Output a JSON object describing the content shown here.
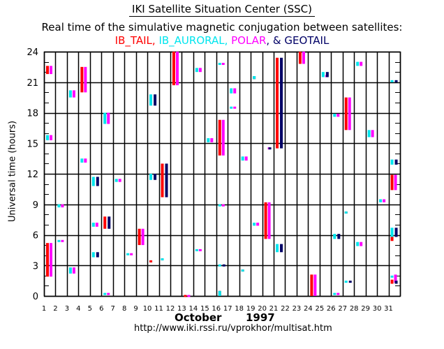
{
  "header": {
    "title": "IKI Satellite Situation Center (SSC)",
    "subtitle": "Real time of the simulative magnetic conjugation between satellites:",
    "legend": [
      {
        "name": "IB_TAIL",
        "sep": ", ",
        "color": "#ff0000"
      },
      {
        "name": "IB_AURORAL",
        "sep": ", ",
        "color": "#00e5ee"
      },
      {
        "name": "POLAR",
        "sep": ", & ",
        "color": "#ff00ff"
      },
      {
        "name": "GEOTAIL",
        "sep": "",
        "color": "#000066"
      }
    ]
  },
  "footer": {
    "month": "October",
    "year": "1997",
    "url": "http://www.iki.rssi.ru/vprokhor/multisat.htm"
  },
  "chart_data": {
    "type": "timeline",
    "title": "Real time of the simulative magnetic conjugation between satellites",
    "xlabel": "October 1997",
    "ylabel": "Universal time (hours)",
    "x_ticks": [
      "1",
      "2",
      "3",
      "4",
      "5",
      "6",
      "7",
      "8",
      "9",
      "10",
      "11",
      "12",
      "13",
      "14",
      "15",
      "16",
      "17",
      "18",
      "19",
      "20",
      "21",
      "22",
      "23",
      "24",
      "25",
      "26",
      "27",
      "28",
      "29",
      "30",
      "31"
    ],
    "y_ticks": [
      0,
      3,
      6,
      9,
      12,
      15,
      18,
      21,
      24
    ],
    "xlim": [
      1,
      32
    ],
    "ylim": [
      0,
      24
    ],
    "series_colors": {
      "IB_TAIL": "#ff0000",
      "IB_AURORAL": "#00e5ee",
      "POLAR": "#ff00ff",
      "GEOTAIL": "#000066"
    },
    "intervals": [
      {
        "sat": "IB_TAIL",
        "day": 1,
        "start": 21.8,
        "end": 22.6
      },
      {
        "sat": "POLAR",
        "day": 1,
        "start": 21.8,
        "end": 22.6
      },
      {
        "sat": "IB_AURORAL",
        "day": 1,
        "start": 15.3,
        "end": 15.8
      },
      {
        "sat": "POLAR",
        "day": 1,
        "start": 15.3,
        "end": 15.8
      },
      {
        "sat": "IB_TAIL",
        "day": 1,
        "start": 1.9,
        "end": 5.2
      },
      {
        "sat": "POLAR",
        "day": 1,
        "start": 1.9,
        "end": 5.2
      },
      {
        "sat": "IB_AURORAL",
        "day": 2,
        "start": 8.7,
        "end": 9.0
      },
      {
        "sat": "POLAR",
        "day": 2,
        "start": 8.7,
        "end": 9.0
      },
      {
        "sat": "IB_AURORAL",
        "day": 2,
        "start": 5.3,
        "end": 5.5
      },
      {
        "sat": "POLAR",
        "day": 2,
        "start": 5.3,
        "end": 5.5
      },
      {
        "sat": "IB_AURORAL",
        "day": 3,
        "start": 19.5,
        "end": 20.2
      },
      {
        "sat": "POLAR",
        "day": 3,
        "start": 19.5,
        "end": 20.2
      },
      {
        "sat": "IB_AURORAL",
        "day": 3,
        "start": 2.2,
        "end": 2.8
      },
      {
        "sat": "POLAR",
        "day": 3,
        "start": 2.2,
        "end": 2.8
      },
      {
        "sat": "IB_TAIL",
        "day": 4,
        "start": 20.0,
        "end": 22.5
      },
      {
        "sat": "POLAR",
        "day": 4,
        "start": 20.0,
        "end": 22.5
      },
      {
        "sat": "IB_AURORAL",
        "day": 4,
        "start": 13.1,
        "end": 13.5
      },
      {
        "sat": "POLAR",
        "day": 4,
        "start": 13.1,
        "end": 13.5
      },
      {
        "sat": "IB_AURORAL",
        "day": 5,
        "start": 10.8,
        "end": 11.7
      },
      {
        "sat": "GEOTAIL",
        "day": 5,
        "start": 10.8,
        "end": 11.7
      },
      {
        "sat": "IB_AURORAL",
        "day": 5,
        "start": 6.8,
        "end": 7.2
      },
      {
        "sat": "POLAR",
        "day": 5,
        "start": 6.8,
        "end": 7.2
      },
      {
        "sat": "IB_AURORAL",
        "day": 5,
        "start": 3.8,
        "end": 4.3
      },
      {
        "sat": "GEOTAIL",
        "day": 5,
        "start": 3.8,
        "end": 4.3
      },
      {
        "sat": "IB_AURORAL",
        "day": 6,
        "start": 16.9,
        "end": 18.0
      },
      {
        "sat": "POLAR",
        "day": 6,
        "start": 16.9,
        "end": 18.0
      },
      {
        "sat": "IB_TAIL",
        "day": 6,
        "start": 6.6,
        "end": 7.8
      },
      {
        "sat": "GEOTAIL",
        "day": 6,
        "start": 6.6,
        "end": 7.8
      },
      {
        "sat": "IB_AURORAL",
        "day": 6,
        "start": 0.1,
        "end": 0.3
      },
      {
        "sat": "POLAR",
        "day": 6,
        "start": 0.1,
        "end": 0.3
      },
      {
        "sat": "IB_AURORAL",
        "day": 7,
        "start": 11.2,
        "end": 11.5
      },
      {
        "sat": "POLAR",
        "day": 7,
        "start": 11.2,
        "end": 11.5
      },
      {
        "sat": "IB_AURORAL",
        "day": 8,
        "start": 4.0,
        "end": 4.2
      },
      {
        "sat": "POLAR",
        "day": 8,
        "start": 4.0,
        "end": 4.2
      },
      {
        "sat": "IB_TAIL",
        "day": 9,
        "start": 5.0,
        "end": 6.6
      },
      {
        "sat": "POLAR",
        "day": 9,
        "start": 5.0,
        "end": 6.6
      },
      {
        "sat": "IB_AURORAL",
        "day": 10,
        "start": 18.7,
        "end": 19.8
      },
      {
        "sat": "GEOTAIL",
        "day": 10,
        "start": 18.7,
        "end": 19.8
      },
      {
        "sat": "IB_AURORAL",
        "day": 10,
        "start": 11.4,
        "end": 12.0
      },
      {
        "sat": "GEOTAIL",
        "day": 10,
        "start": 11.4,
        "end": 12.0
      },
      {
        "sat": "IB_AURORAL",
        "day": 10,
        "start": 3.3,
        "end": 3.5
      },
      {
        "sat": "IB_TAIL",
        "day": 10,
        "start": 3.3,
        "end": 3.5
      },
      {
        "sat": "IB_TAIL",
        "day": 11,
        "start": 9.7,
        "end": 13.0
      },
      {
        "sat": "GEOTAIL",
        "day": 11,
        "start": 9.7,
        "end": 13.0
      },
      {
        "sat": "IB_TAIL",
        "day": 11,
        "start": 3.5,
        "end": 3.7
      },
      {
        "sat": "IB_AURORAL",
        "day": 11,
        "start": 3.5,
        "end": 3.7
      },
      {
        "sat": "IB_TAIL",
        "day": 12,
        "start": 20.7,
        "end": 24.0
      },
      {
        "sat": "POLAR",
        "day": 12,
        "start": 20.7,
        "end": 24.0
      },
      {
        "sat": "IB_TAIL",
        "day": 13,
        "start": 0.0,
        "end": 0.1
      },
      {
        "sat": "POLAR",
        "day": 13,
        "start": 0.0,
        "end": 0.1
      },
      {
        "sat": "IB_AURORAL",
        "day": 14,
        "start": 22.0,
        "end": 22.4
      },
      {
        "sat": "POLAR",
        "day": 14,
        "start": 22.0,
        "end": 22.4
      },
      {
        "sat": "IB_AURORAL",
        "day": 14,
        "start": 4.4,
        "end": 4.6
      },
      {
        "sat": "POLAR",
        "day": 14,
        "start": 4.4,
        "end": 4.6
      },
      {
        "sat": "IB_AURORAL",
        "day": 15,
        "start": 15.1,
        "end": 15.5
      },
      {
        "sat": "POLAR",
        "day": 15,
        "start": 15.1,
        "end": 15.5
      },
      {
        "sat": "IB_TAIL",
        "day": 16,
        "start": 13.8,
        "end": 17.3
      },
      {
        "sat": "POLAR",
        "day": 16,
        "start": 13.8,
        "end": 17.3
      },
      {
        "sat": "IB_AURORAL",
        "day": 16,
        "start": 22.7,
        "end": 22.9
      },
      {
        "sat": "POLAR",
        "day": 16,
        "start": 22.7,
        "end": 22.9
      },
      {
        "sat": "IB_AURORAL",
        "day": 16,
        "start": 8.8,
        "end": 9.0
      },
      {
        "sat": "POLAR",
        "day": 16,
        "start": 8.8,
        "end": 9.0
      },
      {
        "sat": "IB_AURORAL",
        "day": 16,
        "start": 2.9,
        "end": 3.1
      },
      {
        "sat": "GEOTAIL",
        "day": 16,
        "start": 2.9,
        "end": 3.1
      },
      {
        "sat": "IB_TAIL",
        "day": 16,
        "start": 0.0,
        "end": 0.5
      },
      {
        "sat": "IB_AURORAL",
        "day": 16,
        "start": 0.0,
        "end": 0.5
      },
      {
        "sat": "IB_AURORAL",
        "day": 17,
        "start": 19.9,
        "end": 20.4
      },
      {
        "sat": "POLAR",
        "day": 17,
        "start": 19.9,
        "end": 20.4
      },
      {
        "sat": "IB_AURORAL",
        "day": 17,
        "start": 18.4,
        "end": 18.6
      },
      {
        "sat": "POLAR",
        "day": 17,
        "start": 18.4,
        "end": 18.6
      },
      {
        "sat": "IB_AURORAL",
        "day": 18,
        "start": 13.3,
        "end": 13.7
      },
      {
        "sat": "POLAR",
        "day": 18,
        "start": 13.3,
        "end": 13.7
      },
      {
        "sat": "IB_TAIL",
        "day": 18,
        "start": 2.4,
        "end": 2.6
      },
      {
        "sat": "IB_AURORAL",
        "day": 18,
        "start": 2.4,
        "end": 2.6
      },
      {
        "sat": "IB_TAIL",
        "day": 19,
        "start": 21.3,
        "end": 21.6
      },
      {
        "sat": "IB_AURORAL",
        "day": 19,
        "start": 21.3,
        "end": 21.6
      },
      {
        "sat": "IB_AURORAL",
        "day": 19,
        "start": 6.9,
        "end": 7.2
      },
      {
        "sat": "POLAR",
        "day": 19,
        "start": 6.9,
        "end": 7.2
      },
      {
        "sat": "IB_TAIL",
        "day": 20,
        "start": 5.6,
        "end": 9.2
      },
      {
        "sat": "POLAR",
        "day": 20,
        "start": 5.6,
        "end": 9.2
      },
      {
        "sat": "POLAR",
        "day": 20,
        "start": 14.4,
        "end": 14.6
      },
      {
        "sat": "GEOTAIL",
        "day": 20,
        "start": 14.4,
        "end": 14.6
      },
      {
        "sat": "IB_TAIL",
        "day": 21,
        "start": 14.5,
        "end": 23.4
      },
      {
        "sat": "GEOTAIL",
        "day": 21,
        "start": 14.5,
        "end": 23.4
      },
      {
        "sat": "IB_AURORAL",
        "day": 21,
        "start": 4.3,
        "end": 5.1
      },
      {
        "sat": "GEOTAIL",
        "day": 21,
        "start": 4.3,
        "end": 5.1
      },
      {
        "sat": "IB_TAIL",
        "day": 23,
        "start": 22.8,
        "end": 24.0
      },
      {
        "sat": "POLAR",
        "day": 23,
        "start": 22.8,
        "end": 24.0
      },
      {
        "sat": "IB_TAIL",
        "day": 24,
        "start": 0.0,
        "end": 2.1
      },
      {
        "sat": "POLAR",
        "day": 24,
        "start": 0.0,
        "end": 2.1
      },
      {
        "sat": "IB_AURORAL",
        "day": 25,
        "start": 21.5,
        "end": 22.0
      },
      {
        "sat": "POLAR",
        "day": 25,
        "start": 21.5,
        "end": 21.7
      },
      {
        "sat": "GEOTAIL",
        "day": 25,
        "start": 21.5,
        "end": 22.0
      },
      {
        "sat": "IB_AURORAL",
        "day": 26,
        "start": 17.6,
        "end": 17.9
      },
      {
        "sat": "POLAR",
        "day": 26,
        "start": 17.6,
        "end": 17.9
      },
      {
        "sat": "IB_AURORAL",
        "day": 26,
        "start": 5.6,
        "end": 6.1
      },
      {
        "sat": "GEOTAIL",
        "day": 26,
        "start": 5.6,
        "end": 6.1
      },
      {
        "sat": "IB_AURORAL",
        "day": 26,
        "start": 0.1,
        "end": 0.3
      },
      {
        "sat": "POLAR",
        "day": 26,
        "start": 0.1,
        "end": 0.3
      },
      {
        "sat": "IB_TAIL",
        "day": 27,
        "start": 16.3,
        "end": 19.5
      },
      {
        "sat": "POLAR",
        "day": 27,
        "start": 16.3,
        "end": 19.5
      },
      {
        "sat": "IB_TAIL",
        "day": 27,
        "start": 8.1,
        "end": 8.3
      },
      {
        "sat": "IB_AURORAL",
        "day": 27,
        "start": 8.1,
        "end": 8.3
      },
      {
        "sat": "IB_AURORAL",
        "day": 27,
        "start": 1.3,
        "end": 1.5
      },
      {
        "sat": "GEOTAIL",
        "day": 27,
        "start": 1.3,
        "end": 1.5
      },
      {
        "sat": "IB_AURORAL",
        "day": 28,
        "start": 22.6,
        "end": 23.0
      },
      {
        "sat": "POLAR",
        "day": 28,
        "start": 22.6,
        "end": 23.0
      },
      {
        "sat": "IB_AURORAL",
        "day": 28,
        "start": 4.9,
        "end": 5.3
      },
      {
        "sat": "POLAR",
        "day": 28,
        "start": 4.9,
        "end": 5.3
      },
      {
        "sat": "IB_AURORAL",
        "day": 29,
        "start": 15.6,
        "end": 16.3
      },
      {
        "sat": "POLAR",
        "day": 29,
        "start": 15.6,
        "end": 16.3
      },
      {
        "sat": "IB_AURORAL",
        "day": 30,
        "start": 9.2,
        "end": 9.5
      },
      {
        "sat": "POLAR",
        "day": 30,
        "start": 9.2,
        "end": 9.5
      },
      {
        "sat": "IB_AURORAL",
        "day": 31,
        "start": 21.0,
        "end": 21.2
      },
      {
        "sat": "GEOTAIL",
        "day": 31,
        "start": 21.0,
        "end": 21.2
      },
      {
        "sat": "IB_AURORAL",
        "day": 31,
        "start": 12.9,
        "end": 13.4
      },
      {
        "sat": "GEOTAIL",
        "day": 31,
        "start": 12.9,
        "end": 13.4
      },
      {
        "sat": "IB_TAIL",
        "day": 31,
        "start": 10.4,
        "end": 11.9
      },
      {
        "sat": "POLAR",
        "day": 31,
        "start": 10.4,
        "end": 11.9
      },
      {
        "sat": "IB_AURORAL",
        "day": 31,
        "start": 5.5,
        "end": 6.7
      },
      {
        "sat": "GEOTAIL",
        "day": 31,
        "start": 5.8,
        "end": 6.7
      },
      {
        "sat": "IB_TAIL",
        "day": 31,
        "start": 5.4,
        "end": 5.8
      },
      {
        "sat": "IB_AURORAL",
        "day": 31,
        "start": 1.8,
        "end": 2.0
      },
      {
        "sat": "POLAR",
        "day": 31,
        "start": 1.3,
        "end": 2.1
      },
      {
        "sat": "IB_TAIL",
        "day": 31,
        "start": 1.2,
        "end": 1.6
      },
      {
        "sat": "GEOTAIL",
        "day": 31,
        "start": 1.2,
        "end": 1.5
      }
    ]
  }
}
